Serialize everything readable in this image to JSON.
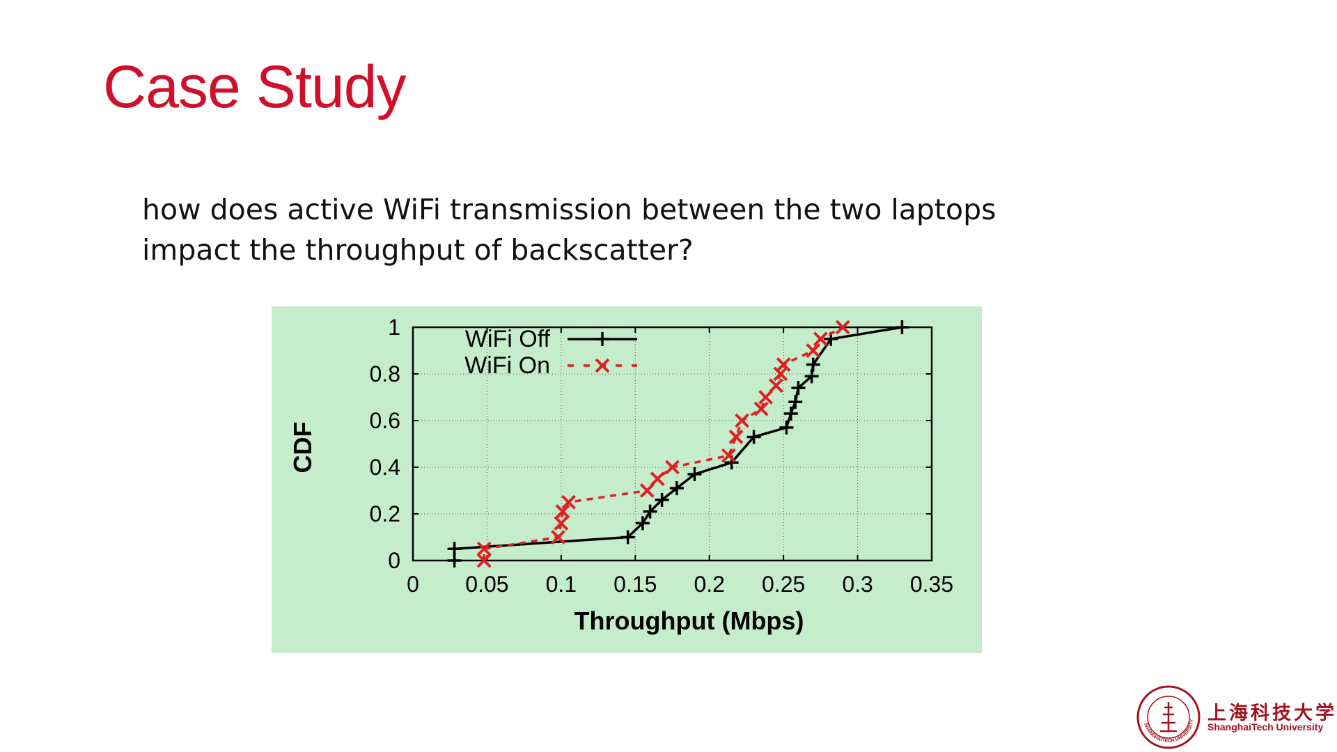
{
  "slide": {
    "title": "Case Study",
    "question_line1": "how does active WiFi transmission between the two laptops",
    "question_line2": "impact the throughput of backscatter?"
  },
  "logo": {
    "name_cn": "上海科技大学",
    "name_en": "ShanghaiTech University",
    "seal_text": "SHANGHAITECH UNIVERSITY",
    "color": "#a4121e"
  },
  "chart_data": {
    "type": "line",
    "title": "",
    "xlabel": "Throughput (Mbps)",
    "ylabel": "CDF",
    "xlim": [
      0,
      0.35
    ],
    "ylim": [
      0,
      1
    ],
    "xticks": [
      "0",
      "0.05",
      "0.1",
      "0.15",
      "0.2",
      "0.25",
      "0.3",
      "0.35"
    ],
    "yticks": [
      "0",
      "0.2",
      "0.4",
      "0.6",
      "0.8",
      "1"
    ],
    "grid": true,
    "legend_position": "top-left",
    "series": [
      {
        "name": "WiFi Off",
        "color": "#000000",
        "marker": "plus",
        "dash": "solid",
        "points": [
          [
            0.028,
            0.0
          ],
          [
            0.028,
            0.05
          ],
          [
            0.145,
            0.1
          ],
          [
            0.155,
            0.16
          ],
          [
            0.16,
            0.21
          ],
          [
            0.168,
            0.26
          ],
          [
            0.178,
            0.31
          ],
          [
            0.19,
            0.37
          ],
          [
            0.215,
            0.42
          ],
          [
            0.23,
            0.53
          ],
          [
            0.252,
            0.57
          ],
          [
            0.255,
            0.63
          ],
          [
            0.258,
            0.68
          ],
          [
            0.26,
            0.74
          ],
          [
            0.269,
            0.79
          ],
          [
            0.27,
            0.84
          ],
          [
            0.282,
            0.95
          ],
          [
            0.33,
            1.0
          ]
        ]
      },
      {
        "name": "WiFi On",
        "color": "#e02020",
        "marker": "x",
        "dash": "dashed",
        "points": [
          [
            0.048,
            0.0
          ],
          [
            0.048,
            0.05
          ],
          [
            0.098,
            0.1
          ],
          [
            0.1,
            0.16
          ],
          [
            0.101,
            0.21
          ],
          [
            0.105,
            0.25
          ],
          [
            0.158,
            0.3
          ],
          [
            0.165,
            0.35
          ],
          [
            0.175,
            0.4
          ],
          [
            0.213,
            0.45
          ],
          [
            0.218,
            0.53
          ],
          [
            0.222,
            0.6
          ],
          [
            0.235,
            0.65
          ],
          [
            0.238,
            0.7
          ],
          [
            0.245,
            0.75
          ],
          [
            0.248,
            0.8
          ],
          [
            0.25,
            0.84
          ],
          [
            0.27,
            0.9
          ],
          [
            0.275,
            0.95
          ],
          [
            0.29,
            1.0
          ]
        ]
      }
    ]
  }
}
